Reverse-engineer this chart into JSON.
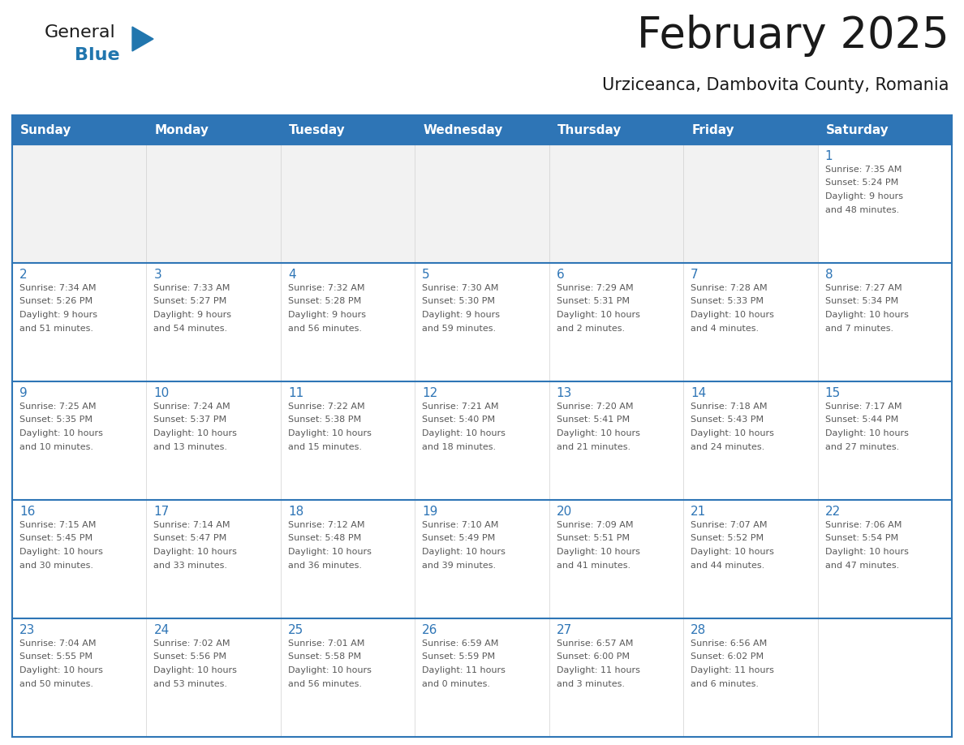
{
  "title": "February 2025",
  "subtitle": "Urziceanca, Dambovita County, Romania",
  "header_bg": "#2E75B6",
  "header_text_color": "#FFFFFF",
  "cell_bg": "#FFFFFF",
  "empty_cell_bg": "#F2F2F2",
  "cell_border_color": "#2E75B6",
  "day_number_color": "#2E75B6",
  "detail_text_color": "#595959",
  "grid_line_color": "#2E75B6",
  "weekdays": [
    "Sunday",
    "Monday",
    "Tuesday",
    "Wednesday",
    "Thursday",
    "Friday",
    "Saturday"
  ],
  "weeks": [
    [
      {
        "day": null,
        "sunrise": null,
        "sunset": null,
        "daylight": null
      },
      {
        "day": null,
        "sunrise": null,
        "sunset": null,
        "daylight": null
      },
      {
        "day": null,
        "sunrise": null,
        "sunset": null,
        "daylight": null
      },
      {
        "day": null,
        "sunrise": null,
        "sunset": null,
        "daylight": null
      },
      {
        "day": null,
        "sunrise": null,
        "sunset": null,
        "daylight": null
      },
      {
        "day": null,
        "sunrise": null,
        "sunset": null,
        "daylight": null
      },
      {
        "day": 1,
        "sunrise": "7:35 AM",
        "sunset": "5:24 PM",
        "daylight": "9 hours\nand 48 minutes."
      }
    ],
    [
      {
        "day": 2,
        "sunrise": "7:34 AM",
        "sunset": "5:26 PM",
        "daylight": "9 hours\nand 51 minutes."
      },
      {
        "day": 3,
        "sunrise": "7:33 AM",
        "sunset": "5:27 PM",
        "daylight": "9 hours\nand 54 minutes."
      },
      {
        "day": 4,
        "sunrise": "7:32 AM",
        "sunset": "5:28 PM",
        "daylight": "9 hours\nand 56 minutes."
      },
      {
        "day": 5,
        "sunrise": "7:30 AM",
        "sunset": "5:30 PM",
        "daylight": "9 hours\nand 59 minutes."
      },
      {
        "day": 6,
        "sunrise": "7:29 AM",
        "sunset": "5:31 PM",
        "daylight": "10 hours\nand 2 minutes."
      },
      {
        "day": 7,
        "sunrise": "7:28 AM",
        "sunset": "5:33 PM",
        "daylight": "10 hours\nand 4 minutes."
      },
      {
        "day": 8,
        "sunrise": "7:27 AM",
        "sunset": "5:34 PM",
        "daylight": "10 hours\nand 7 minutes."
      }
    ],
    [
      {
        "day": 9,
        "sunrise": "7:25 AM",
        "sunset": "5:35 PM",
        "daylight": "10 hours\nand 10 minutes."
      },
      {
        "day": 10,
        "sunrise": "7:24 AM",
        "sunset": "5:37 PM",
        "daylight": "10 hours\nand 13 minutes."
      },
      {
        "day": 11,
        "sunrise": "7:22 AM",
        "sunset": "5:38 PM",
        "daylight": "10 hours\nand 15 minutes."
      },
      {
        "day": 12,
        "sunrise": "7:21 AM",
        "sunset": "5:40 PM",
        "daylight": "10 hours\nand 18 minutes."
      },
      {
        "day": 13,
        "sunrise": "7:20 AM",
        "sunset": "5:41 PM",
        "daylight": "10 hours\nand 21 minutes."
      },
      {
        "day": 14,
        "sunrise": "7:18 AM",
        "sunset": "5:43 PM",
        "daylight": "10 hours\nand 24 minutes."
      },
      {
        "day": 15,
        "sunrise": "7:17 AM",
        "sunset": "5:44 PM",
        "daylight": "10 hours\nand 27 minutes."
      }
    ],
    [
      {
        "day": 16,
        "sunrise": "7:15 AM",
        "sunset": "5:45 PM",
        "daylight": "10 hours\nand 30 minutes."
      },
      {
        "day": 17,
        "sunrise": "7:14 AM",
        "sunset": "5:47 PM",
        "daylight": "10 hours\nand 33 minutes."
      },
      {
        "day": 18,
        "sunrise": "7:12 AM",
        "sunset": "5:48 PM",
        "daylight": "10 hours\nand 36 minutes."
      },
      {
        "day": 19,
        "sunrise": "7:10 AM",
        "sunset": "5:49 PM",
        "daylight": "10 hours\nand 39 minutes."
      },
      {
        "day": 20,
        "sunrise": "7:09 AM",
        "sunset": "5:51 PM",
        "daylight": "10 hours\nand 41 minutes."
      },
      {
        "day": 21,
        "sunrise": "7:07 AM",
        "sunset": "5:52 PM",
        "daylight": "10 hours\nand 44 minutes."
      },
      {
        "day": 22,
        "sunrise": "7:06 AM",
        "sunset": "5:54 PM",
        "daylight": "10 hours\nand 47 minutes."
      }
    ],
    [
      {
        "day": 23,
        "sunrise": "7:04 AM",
        "sunset": "5:55 PM",
        "daylight": "10 hours\nand 50 minutes."
      },
      {
        "day": 24,
        "sunrise": "7:02 AM",
        "sunset": "5:56 PM",
        "daylight": "10 hours\nand 53 minutes."
      },
      {
        "day": 25,
        "sunrise": "7:01 AM",
        "sunset": "5:58 PM",
        "daylight": "10 hours\nand 56 minutes."
      },
      {
        "day": 26,
        "sunrise": "6:59 AM",
        "sunset": "5:59 PM",
        "daylight": "11 hours\nand 0 minutes."
      },
      {
        "day": 27,
        "sunrise": "6:57 AM",
        "sunset": "6:00 PM",
        "daylight": "11 hours\nand 3 minutes."
      },
      {
        "day": 28,
        "sunrise": "6:56 AM",
        "sunset": "6:02 PM",
        "daylight": "11 hours\nand 6 minutes."
      },
      {
        "day": null,
        "sunrise": null,
        "sunset": null,
        "daylight": null
      }
    ]
  ],
  "logo_text_general": "General",
  "logo_text_blue": "Blue",
  "logo_color_general": "#1a1a1a",
  "logo_color_blue": "#2176AE",
  "logo_triangle_color": "#2176AE",
  "title_fontsize": 38,
  "subtitle_fontsize": 15,
  "header_fontsize": 11,
  "day_num_fontsize": 11,
  "detail_fontsize": 8
}
